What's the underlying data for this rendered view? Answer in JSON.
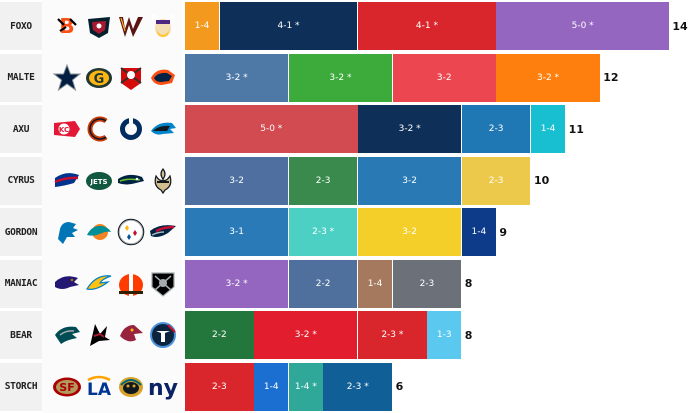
{
  "chart_data": {
    "type": "bar",
    "stacked": true,
    "orientation": "horizontal",
    "rows": [
      {
        "name": "FOXO",
        "total": 14,
        "teams": [
          {
            "icon": "bengals-logo-icon"
          },
          {
            "icon": "texans-logo-icon"
          },
          {
            "icon": "commanders-logo-icon"
          },
          {
            "icon": "vikings-logo-icon"
          }
        ],
        "segments": [
          {
            "label": "1-4",
            "value": 1,
            "color": "#f39a1e"
          },
          {
            "label": "4-1 *",
            "value": 4,
            "color": "#0e2f57"
          },
          {
            "label": "4-1 *",
            "value": 4,
            "color": "#d8262c"
          },
          {
            "label": "5-0 *",
            "value": 5,
            "color": "#9466bf"
          }
        ]
      },
      {
        "name": "MALTE",
        "total": 12,
        "teams": [
          {
            "icon": "cowboys-logo-icon"
          },
          {
            "icon": "packers-logo-icon"
          },
          {
            "icon": "buccaneers-logo-icon"
          },
          {
            "icon": "broncos-logo-icon"
          }
        ],
        "segments": [
          {
            "label": "3-2 *",
            "value": 3,
            "color": "#4e79a7"
          },
          {
            "label": "3-2 *",
            "value": 3,
            "color": "#3cab3c"
          },
          {
            "label": "3-2",
            "value": 3,
            "color": "#ec4650"
          },
          {
            "label": "3-2 *",
            "value": 3,
            "color": "#ff7f0e"
          }
        ]
      },
      {
        "name": "AXU",
        "total": 11,
        "teams": [
          {
            "icon": "chiefs-logo-icon"
          },
          {
            "icon": "bears-logo-icon"
          },
          {
            "icon": "colts-logo-icon"
          },
          {
            "icon": "panthers-logo-icon"
          }
        ],
        "segments": [
          {
            "label": "5-0 *",
            "value": 5,
            "color": "#d14b50"
          },
          {
            "label": "3-2 *",
            "value": 3,
            "color": "#0e2f57"
          },
          {
            "label": "2-3",
            "value": 2,
            "color": "#1f77b4"
          },
          {
            "label": "1-4",
            "value": 1,
            "color": "#18bfd1"
          }
        ]
      },
      {
        "name": "CYRUS",
        "total": 10,
        "teams": [
          {
            "icon": "bills-logo-icon"
          },
          {
            "icon": "jets-logo-icon"
          },
          {
            "icon": "seahawks-logo-icon"
          },
          {
            "icon": "saints-logo-icon"
          }
        ],
        "segments": [
          {
            "label": "3-2",
            "value": 3,
            "color": "#4e6fa0"
          },
          {
            "label": "2-3",
            "value": 2,
            "color": "#3a8a4e"
          },
          {
            "label": "3-2",
            "value": 3,
            "color": "#2979b5"
          },
          {
            "label": "2-3",
            "value": 2,
            "color": "#ecc94b"
          }
        ]
      },
      {
        "name": "GORDON",
        "total": 9,
        "teams": [
          {
            "icon": "lions-logo-icon"
          },
          {
            "icon": "dolphins-logo-icon"
          },
          {
            "icon": "steelers-logo-icon"
          },
          {
            "icon": "patriots-logo-icon"
          }
        ],
        "segments": [
          {
            "label": "3-1",
            "value": 3,
            "color": "#2a7ab8"
          },
          {
            "label": "2-3 *",
            "value": 2,
            "color": "#4dd0c4"
          },
          {
            "label": "3-2",
            "value": 3,
            "color": "#f4cf2a"
          },
          {
            "label": "1-4",
            "value": 1,
            "color": "#0d3b8a"
          }
        ]
      },
      {
        "name": "MANIAC",
        "total": 8,
        "teams": [
          {
            "icon": "ravens-logo-icon"
          },
          {
            "icon": "chargers-logo-icon"
          },
          {
            "icon": "browns-logo-icon"
          },
          {
            "icon": "raiders-logo-icon"
          }
        ],
        "segments": [
          {
            "label": "3-2 *",
            "value": 3,
            "color": "#9466bf"
          },
          {
            "label": "2-2",
            "value": 2,
            "color": "#4f709c"
          },
          {
            "label": "1-4",
            "value": 1,
            "color": "#a5795d"
          },
          {
            "label": "2-3",
            "value": 2,
            "color": "#6b7079"
          }
        ]
      },
      {
        "name": "BEAR",
        "total": 8,
        "teams": [
          {
            "icon": "eagles-logo-icon"
          },
          {
            "icon": "falcons-logo-icon"
          },
          {
            "icon": "cardinals-logo-icon"
          },
          {
            "icon": "titans-logo-icon"
          }
        ],
        "segments": [
          {
            "label": "2-2",
            "value": 2,
            "color": "#23773d"
          },
          {
            "label": "3-2 *",
            "value": 3,
            "color": "#e21d2e"
          },
          {
            "label": "2-3 *",
            "value": 2,
            "color": "#d8262c"
          },
          {
            "label": "1-3",
            "value": 1,
            "color": "#5bc8ef"
          }
        ]
      },
      {
        "name": "STORCH",
        "total": 6,
        "teams": [
          {
            "icon": "49ers-logo-icon"
          },
          {
            "icon": "rams-logo-icon"
          },
          {
            "icon": "jaguars-logo-icon"
          },
          {
            "icon": "giants-logo-icon"
          }
        ],
        "segments": [
          {
            "label": "2-3",
            "value": 2,
            "color": "#d8262c"
          },
          {
            "label": "1-4",
            "value": 1,
            "color": "#1a6fd1"
          },
          {
            "label": "1-4 *",
            "value": 1,
            "color": "#2fa89a"
          },
          {
            "label": "2-3 *",
            "value": 2,
            "color": "#115f97"
          }
        ]
      }
    ]
  }
}
